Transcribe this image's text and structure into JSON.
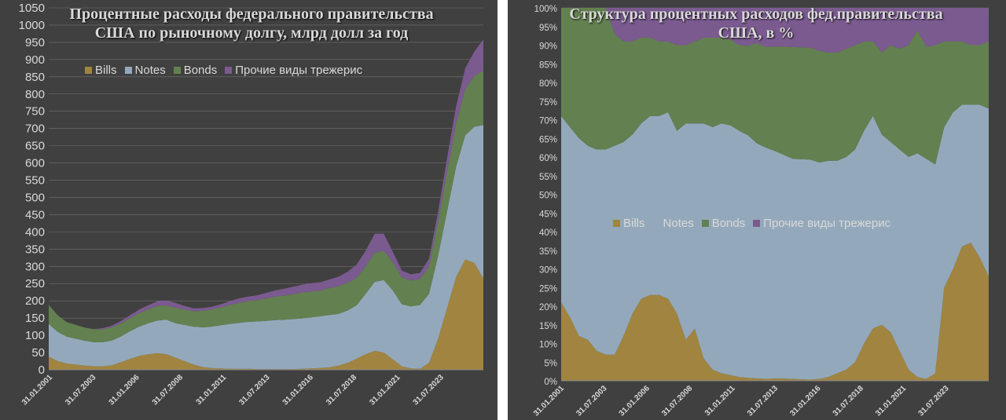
{
  "colors": {
    "bills": "#a08440",
    "notes": "#93a9bb",
    "bonds": "#638050",
    "other": "#7b5a90",
    "gridline": "#707070"
  },
  "chart_data": [
    {
      "type": "area",
      "stacked": true,
      "title": "Процентные расходы федерального правительства США по рыночному долгу, млрд долл за год",
      "x_tick_labels": [
        "31.01.2001",
        "31.07.2003",
        "31.01.2006",
        "31.07.2008",
        "31.01.2011",
        "31.07.2013",
        "31.01.2016",
        "31.07.2018",
        "31.01.2021",
        "31.07.2023"
      ],
      "x": [
        2001.0,
        2001.5,
        2002.0,
        2002.5,
        2003.0,
        2003.5,
        2004.0,
        2004.5,
        2005.0,
        2005.5,
        2006.0,
        2006.5,
        2007.0,
        2007.5,
        2008.0,
        2008.5,
        2009.0,
        2009.5,
        2010.0,
        2010.5,
        2011.0,
        2011.5,
        2012.0,
        2012.5,
        2013.0,
        2013.5,
        2014.0,
        2014.5,
        2015.0,
        2015.5,
        2016.0,
        2016.5,
        2017.0,
        2017.5,
        2018.0,
        2018.5,
        2019.0,
        2019.5,
        2020.0,
        2020.5,
        2021.0,
        2021.5,
        2022.0,
        2022.5,
        2023.0,
        2023.5,
        2024.0,
        2024.5,
        2025.0
      ],
      "ylim": [
        0,
        1050
      ],
      "y_ticks": [
        0,
        50,
        100,
        150,
        200,
        250,
        300,
        350,
        400,
        450,
        500,
        550,
        600,
        650,
        700,
        750,
        800,
        850,
        900,
        950,
        1000,
        1050
      ],
      "grid": true,
      "legend_position": "top",
      "series": [
        {
          "name": "Bills",
          "values": [
            38,
            25,
            18,
            15,
            12,
            10,
            10,
            13,
            22,
            32,
            40,
            45,
            48,
            45,
            35,
            25,
            15,
            8,
            5,
            4,
            3,
            3,
            3,
            2,
            2,
            2,
            2,
            2,
            3,
            4,
            5,
            7,
            12,
            20,
            32,
            45,
            55,
            50,
            30,
            10,
            4,
            3,
            20,
            90,
            180,
            270,
            320,
            310,
            265
          ]
        },
        {
          "name": "Notes",
          "values": [
            95,
            85,
            78,
            75,
            72,
            70,
            70,
            72,
            75,
            80,
            85,
            90,
            95,
            100,
            100,
            105,
            110,
            115,
            120,
            125,
            130,
            133,
            136,
            138,
            140,
            142,
            143,
            145,
            146,
            148,
            150,
            152,
            150,
            152,
            155,
            175,
            200,
            210,
            200,
            180,
            180,
            185,
            200,
            240,
            280,
            320,
            360,
            395,
            445
          ]
        },
        {
          "name": "Bonds",
          "values": [
            55,
            48,
            42,
            40,
            38,
            38,
            38,
            38,
            38,
            38,
            40,
            40,
            42,
            42,
            45,
            45,
            45,
            48,
            50,
            52,
            55,
            58,
            60,
            62,
            65,
            68,
            70,
            72,
            75,
            75,
            75,
            78,
            80,
            80,
            80,
            80,
            85,
            85,
            82,
            78,
            75,
            75,
            80,
            100,
            115,
            125,
            135,
            148,
            158
          ]
        },
        {
          "name": "Прочие виды трежерис",
          "values": [
            0,
            0,
            0,
            0,
            0,
            0,
            3,
            5,
            7,
            9,
            10,
            12,
            14,
            14,
            14,
            10,
            8,
            8,
            8,
            9,
            11,
            13,
            13,
            14,
            16,
            18,
            20,
            22,
            23,
            24,
            24,
            25,
            28,
            32,
            38,
            45,
            55,
            50,
            30,
            20,
            18,
            18,
            22,
            28,
            40,
            50,
            60,
            70,
            90
          ]
        }
      ]
    },
    {
      "type": "area",
      "stacked": true,
      "normalized": true,
      "title": "Структура процентных расходов фед.правительства США, в %",
      "x_tick_labels": [
        "31.01.2001",
        "31.07.2003",
        "31.01.2006",
        "31.07.2008",
        "31.01.2011",
        "31.07.2013",
        "31.01.2016",
        "31.07.2018",
        "31.01.2021",
        "31.07.2023"
      ],
      "x": [
        2001.0,
        2001.5,
        2002.0,
        2002.5,
        2003.0,
        2003.5,
        2004.0,
        2004.5,
        2005.0,
        2005.5,
        2006.0,
        2006.5,
        2007.0,
        2007.5,
        2008.0,
        2008.5,
        2009.0,
        2009.5,
        2010.0,
        2010.5,
        2011.0,
        2011.5,
        2012.0,
        2012.5,
        2013.0,
        2013.5,
        2014.0,
        2014.5,
        2015.0,
        2015.5,
        2016.0,
        2016.5,
        2017.0,
        2017.5,
        2018.0,
        2018.5,
        2019.0,
        2019.5,
        2020.0,
        2020.5,
        2021.0,
        2021.5,
        2022.0,
        2022.5,
        2023.0,
        2023.5,
        2024.0,
        2024.5,
        2025.0
      ],
      "ylim": [
        0,
        100
      ],
      "y_ticks": [
        "0%",
        "5%",
        "10%",
        "15%",
        "20%",
        "25%",
        "30%",
        "35%",
        "40%",
        "45%",
        "50%",
        "55%",
        "60%",
        "65%",
        "70%",
        "75%",
        "80%",
        "85%",
        "90%",
        "95%",
        "100%"
      ],
      "grid": true,
      "legend_position": "center",
      "series": [
        {
          "name": "Bills",
          "values": [
            21,
            17,
            12,
            11,
            8,
            7,
            7,
            12,
            18,
            22,
            23,
            23,
            22,
            18,
            11,
            14,
            6,
            3,
            2,
            1.5,
            1,
            0.8,
            0.6,
            0.5,
            0.6,
            0.6,
            0.5,
            0.4,
            0.3,
            0.5,
            1,
            2,
            3,
            5,
            10,
            14,
            15,
            13,
            8,
            3,
            1,
            0.5,
            2,
            25,
            30,
            36,
            37,
            33,
            28
          ]
        },
        {
          "name": "Notes",
          "values": [
            50,
            51,
            53,
            52,
            54,
            55,
            56,
            52,
            48,
            47,
            48,
            48,
            50,
            49,
            58,
            55,
            63,
            65,
            67,
            67,
            66,
            65,
            63,
            62,
            61,
            60,
            59,
            59,
            59,
            58,
            58,
            57,
            57,
            57,
            57,
            57,
            51,
            51,
            54,
            57,
            60,
            59,
            56,
            43,
            42,
            38,
            37,
            41,
            45
          ]
        },
        {
          "name": "Bonds",
          "values": [
            29,
            32,
            35,
            37,
            38,
            38,
            30,
            27,
            25,
            23,
            21,
            20,
            19,
            23,
            21,
            22,
            23,
            24,
            23,
            23,
            23,
            24,
            27,
            27,
            28,
            29,
            30,
            30,
            30,
            30,
            29,
            29,
            29,
            28,
            24,
            20,
            22,
            26,
            27,
            30,
            33,
            30,
            32,
            23,
            19,
            17,
            16,
            16,
            18
          ]
        },
        {
          "name": "Прочие виды трежерис",
          "values": [
            0,
            0,
            0,
            0,
            0,
            0,
            7,
            9,
            9,
            8,
            8,
            9,
            9,
            10,
            10,
            9,
            8,
            8,
            8,
            8.5,
            10,
            10.2,
            9.4,
            10.5,
            10.4,
            10.4,
            10.5,
            10.6,
            10.7,
            11.5,
            12,
            12,
            11,
            10,
            9,
            9,
            12,
            10,
            11,
            10,
            6,
            10.5,
            10,
            9,
            9,
            9,
            10,
            10,
            9
          ]
        }
      ]
    }
  ]
}
